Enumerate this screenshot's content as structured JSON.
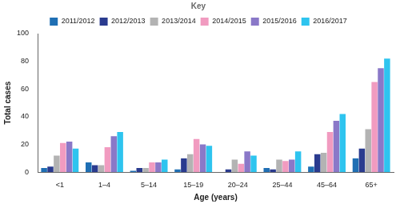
{
  "chart_data": {
    "type": "bar",
    "x_label": "Age (years)",
    "y_label": "Total cases",
    "legend_title": "Key",
    "categories": [
      "<1",
      "1–4",
      "5–14",
      "15–19",
      "20–24",
      "25–44",
      "45–64",
      "65+"
    ],
    "series": [
      {
        "name": "2011/2012",
        "color": "#1f6fb4",
        "values": [
          3,
          7,
          1,
          2,
          0,
          3,
          4,
          10
        ]
      },
      {
        "name": "2012/2013",
        "color": "#2a3b8f",
        "values": [
          4,
          5,
          3,
          10,
          2,
          2,
          13,
          17
        ]
      },
      {
        "name": "2013/2014",
        "color": "#b3b3b3",
        "values": [
          12,
          5,
          3,
          13,
          9,
          9,
          14,
          31
        ]
      },
      {
        "name": "2014/2015",
        "color": "#f19bc0",
        "values": [
          21,
          18,
          7,
          24,
          6,
          8,
          29,
          65
        ]
      },
      {
        "name": "2015/2016",
        "color": "#8a78c8",
        "values": [
          22,
          26,
          7,
          20,
          15,
          9,
          37,
          75
        ]
      },
      {
        "name": "2016/2017",
        "color": "#2ec4ef",
        "values": [
          17,
          29,
          9,
          19,
          12,
          15,
          42,
          82
        ]
      }
    ],
    "ylim": [
      0,
      100
    ],
    "yticks": [
      0,
      20,
      40,
      60,
      80,
      100
    ],
    "grid": false,
    "legend": "top"
  }
}
